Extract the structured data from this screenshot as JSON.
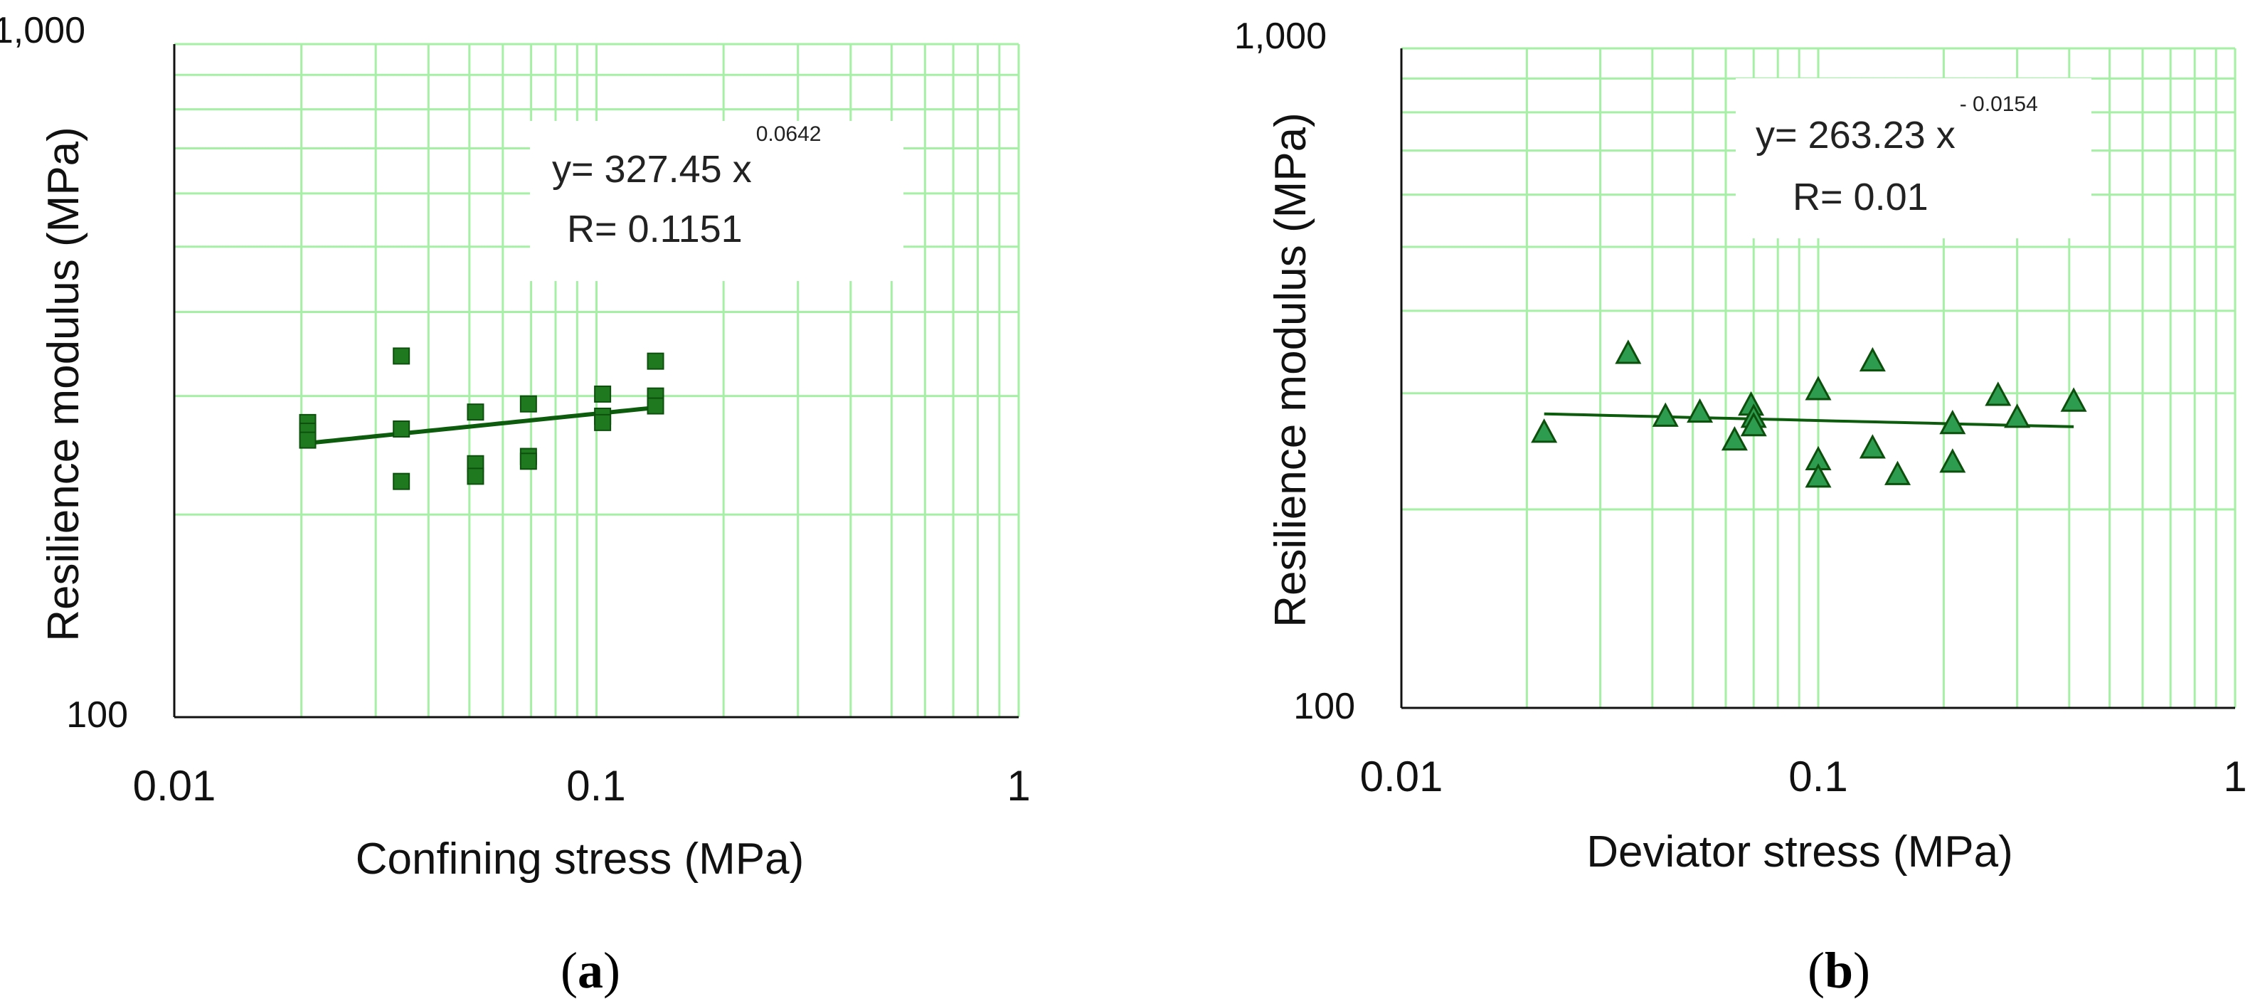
{
  "colors": {
    "grid": "#a6f0a6",
    "axis": "#111111",
    "marker": "#1f7a1f",
    "marker_edge": "#0d4f0d",
    "line": "#0d5c0d",
    "triangle": "#2e9c4e"
  },
  "chart_data": [
    {
      "type": "scatter",
      "panel": "a",
      "xlabel": "Confining stress (MPa)",
      "ylabel": "Resilience modulus (MPa)",
      "xscale": "log",
      "yscale": "log",
      "xlim": [
        0.01,
        1
      ],
      "ylim": [
        100,
        1000
      ],
      "xticks": [
        "0.01",
        "0.1",
        "1"
      ],
      "yticks": [
        "100",
        "1,000"
      ],
      "grid": true,
      "marker": "square",
      "equation": {
        "lead": "y= 327.45 x",
        "exponent": "0.0642",
        "r": "R= 0.1151"
      },
      "fit": {
        "a": 327.45,
        "b": 0.0642,
        "x_range": [
          0.0207,
          0.138
        ]
      },
      "points": [
        {
          "x": 0.0207,
          "y": 274
        },
        {
          "x": 0.0207,
          "y": 266
        },
        {
          "x": 0.0207,
          "y": 258
        },
        {
          "x": 0.0345,
          "y": 344
        },
        {
          "x": 0.0345,
          "y": 268
        },
        {
          "x": 0.0345,
          "y": 224
        },
        {
          "x": 0.0517,
          "y": 284
        },
        {
          "x": 0.0517,
          "y": 238
        },
        {
          "x": 0.0517,
          "y": 228
        },
        {
          "x": 0.069,
          "y": 292
        },
        {
          "x": 0.069,
          "y": 244
        },
        {
          "x": 0.069,
          "y": 240
        },
        {
          "x": 0.1034,
          "y": 302
        },
        {
          "x": 0.1034,
          "y": 280
        },
        {
          "x": 0.1034,
          "y": 274
        },
        {
          "x": 0.138,
          "y": 338
        },
        {
          "x": 0.138,
          "y": 300
        },
        {
          "x": 0.138,
          "y": 290
        }
      ]
    },
    {
      "type": "scatter",
      "panel": "b",
      "xlabel": "Deviator stress (MPa)",
      "ylabel": "Resilience modulus (MPa)",
      "xscale": "log",
      "yscale": "log",
      "xlim": [
        0.01,
        1
      ],
      "ylim": [
        100,
        1000
      ],
      "xticks": [
        "0.01",
        "0.1",
        "1"
      ],
      "yticks": [
        "100",
        "1,000"
      ],
      "grid": true,
      "marker": "triangle",
      "equation": {
        "lead": "y= 263.23 x",
        "exponent": "- 0.0154",
        "r": "R= 0.01"
      },
      "fit": {
        "a": 263.23,
        "b": -0.0154,
        "x_range": [
          0.022,
          0.41
        ]
      },
      "points": [
        {
          "x": 0.022,
          "y": 262
        },
        {
          "x": 0.035,
          "y": 345
        },
        {
          "x": 0.043,
          "y": 277
        },
        {
          "x": 0.052,
          "y": 281
        },
        {
          "x": 0.063,
          "y": 255
        },
        {
          "x": 0.069,
          "y": 288
        },
        {
          "x": 0.07,
          "y": 276
        },
        {
          "x": 0.07,
          "y": 268
        },
        {
          "x": 0.1,
          "y": 304
        },
        {
          "x": 0.1,
          "y": 238
        },
        {
          "x": 0.1,
          "y": 224
        },
        {
          "x": 0.135,
          "y": 336
        },
        {
          "x": 0.135,
          "y": 248
        },
        {
          "x": 0.155,
          "y": 226
        },
        {
          "x": 0.21,
          "y": 270
        },
        {
          "x": 0.21,
          "y": 236
        },
        {
          "x": 0.27,
          "y": 298
        },
        {
          "x": 0.3,
          "y": 276
        },
        {
          "x": 0.41,
          "y": 292
        }
      ]
    }
  ]
}
